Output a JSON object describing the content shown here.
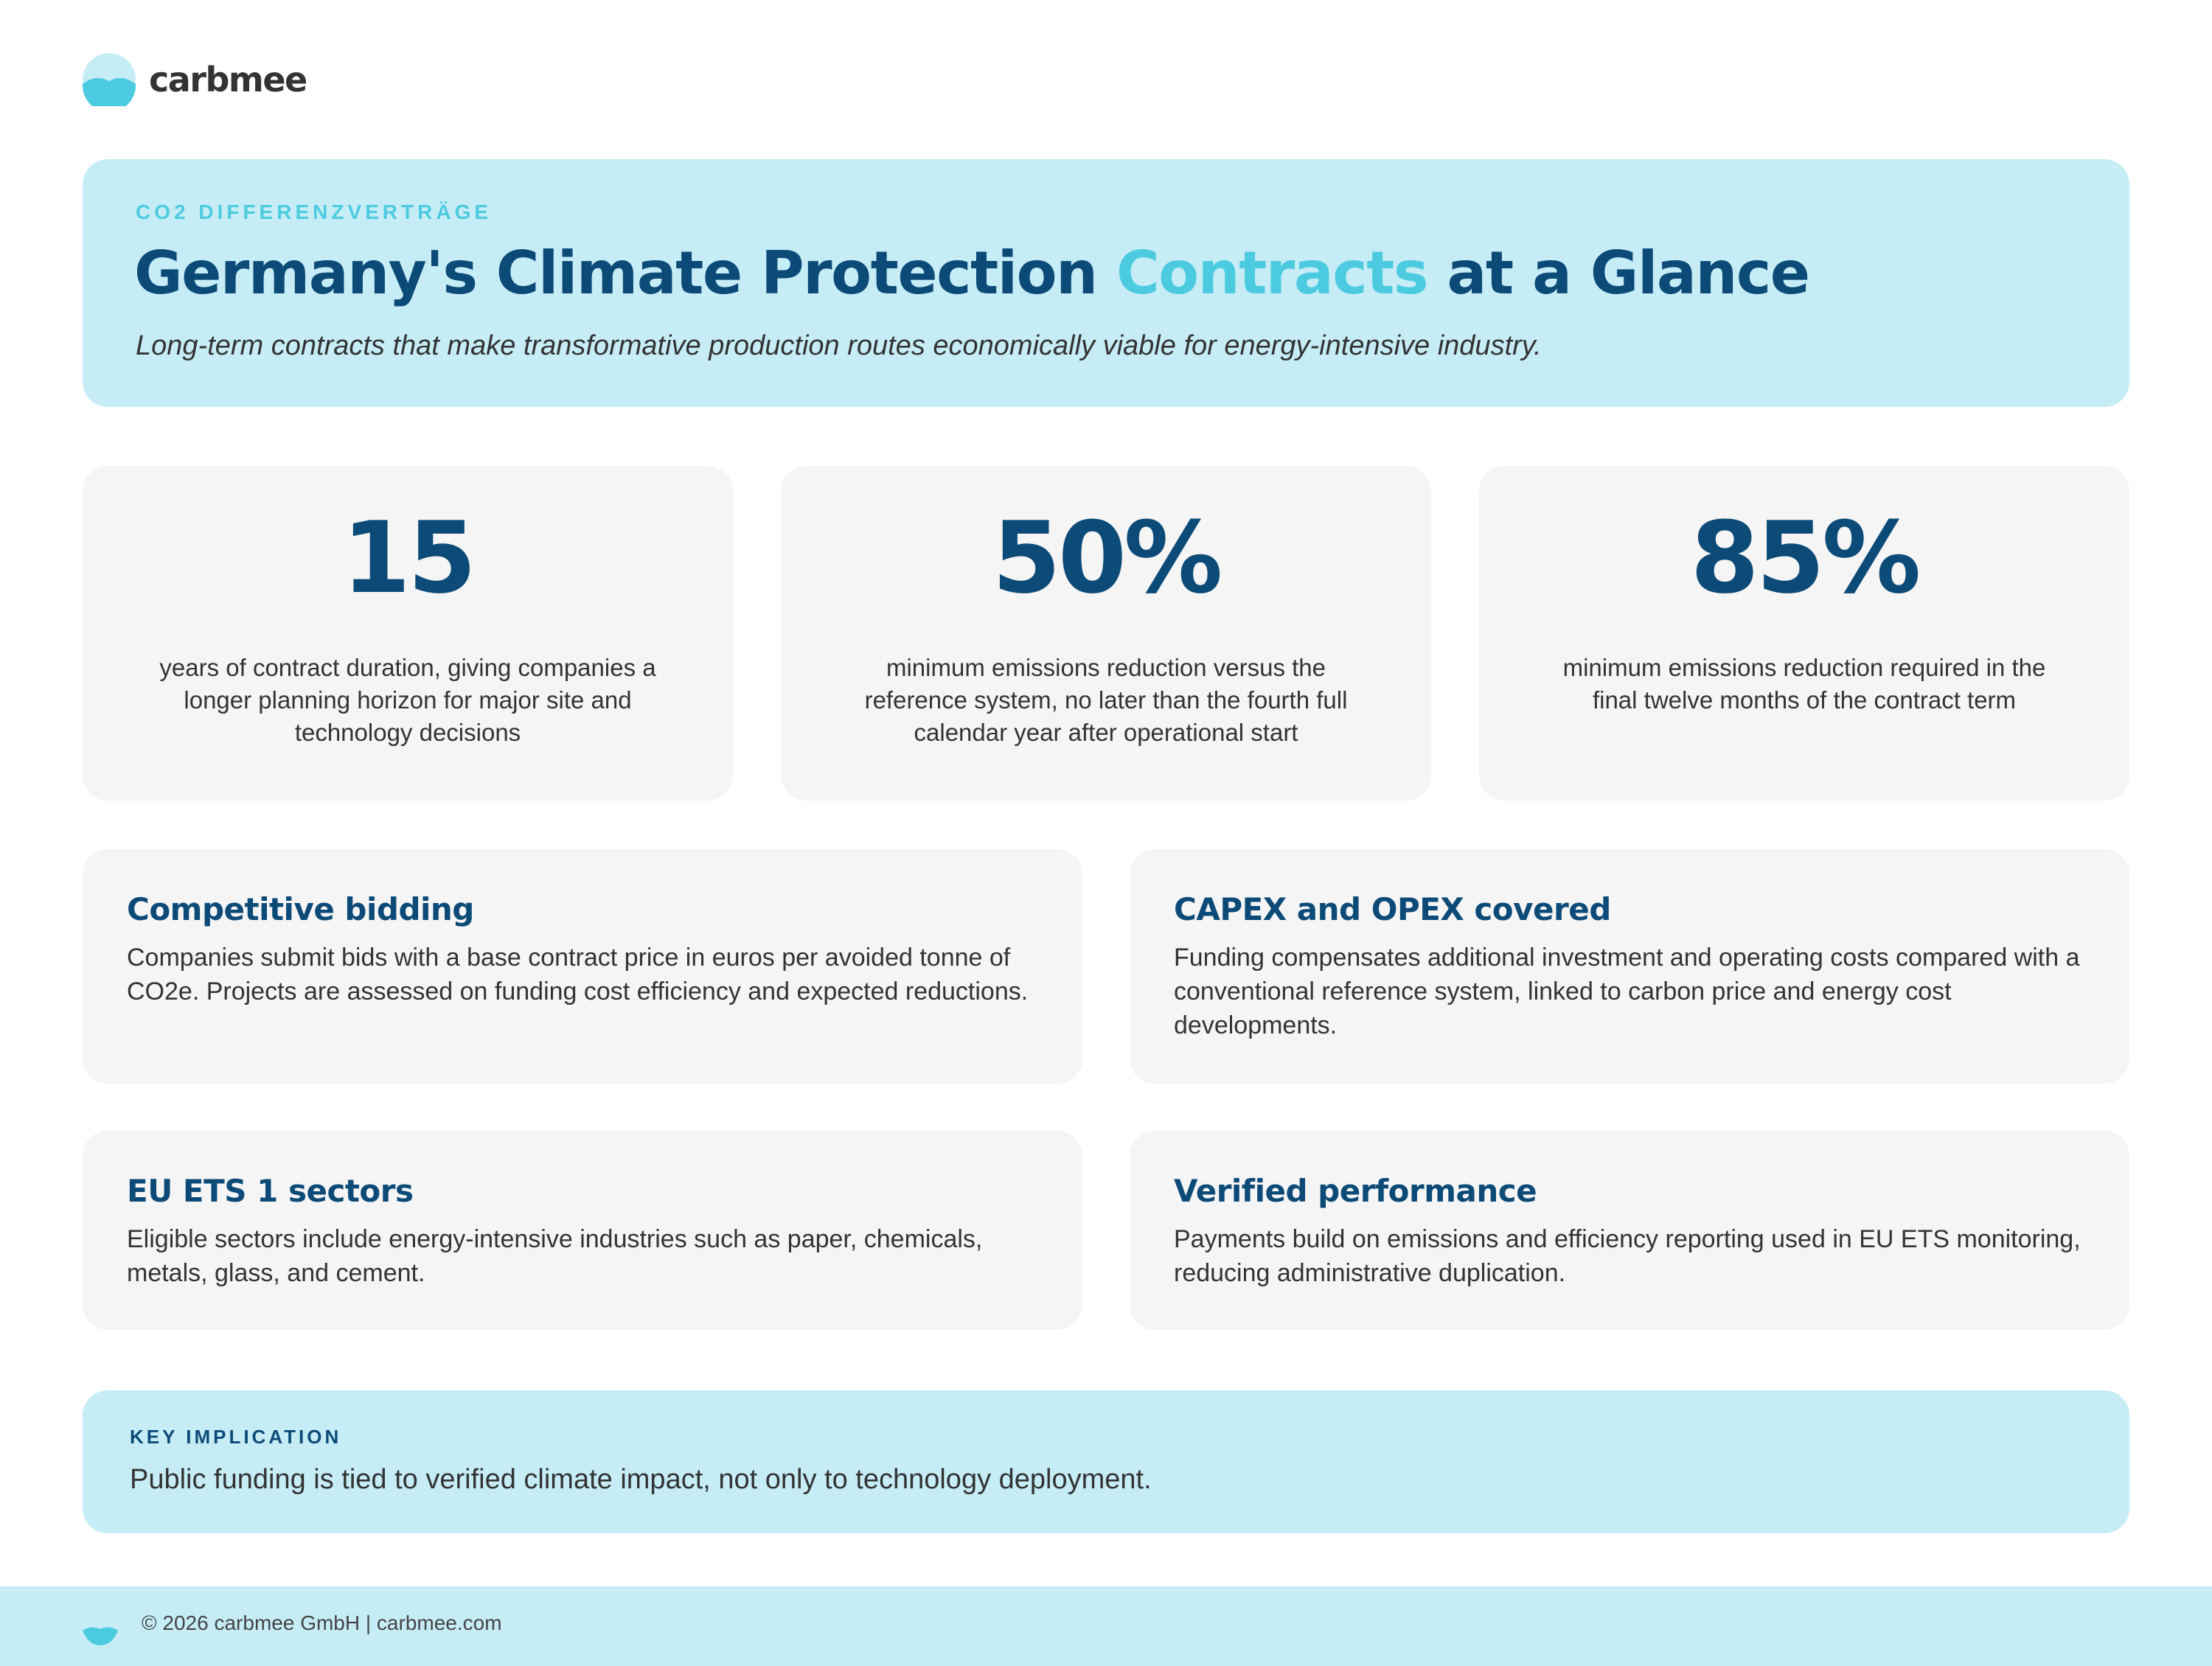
{
  "brand": {
    "name": "carbmee",
    "colors": {
      "navy": "#0c4a78",
      "cyan": "#4ccbe0",
      "light": "#c6edf6"
    }
  },
  "hero": {
    "eyebrow": "CO2 DIFFERENZVERTRÄGE",
    "title_pre": "Germany's Climate Protection ",
    "title_accent": "Contracts",
    "title_post": " at a Glance",
    "subtitle": "Long-term contracts that make transformative production routes economically viable for energy-intensive industry."
  },
  "stats": [
    {
      "value": "15",
      "description": "years of contract duration, giving companies a longer planning horizon for major site and technology decisions"
    },
    {
      "value": "50%",
      "description": "minimum emissions reduction versus the reference system, no later than the fourth full calendar year after operational start"
    },
    {
      "value": "85%",
      "description": "minimum emissions reduction required in the final twelve months of the contract term"
    }
  ],
  "features": [
    {
      "title": "Competitive bidding",
      "text": "Companies submit bids with a base contract price in euros per avoided tonne of CO2e. Projects are assessed on funding cost efficiency and expected reductions."
    },
    {
      "title": "CAPEX and OPEX covered",
      "text": "Funding compensates additional investment and operating costs compared with a conventional reference system, linked to carbon price and energy cost developments."
    },
    {
      "title": "EU ETS 1 sectors",
      "text": "Eligible sectors include energy-intensive industries such as paper, chemicals, metals, glass, and cement."
    },
    {
      "title": "Verified performance",
      "text": "Payments build on emissions and efficiency reporting used in EU ETS monitoring, reducing administrative duplication."
    }
  ],
  "key_implication": {
    "label": "KEY IMPLICATION",
    "text": "Public funding is tied to verified climate impact, not only to technology deployment."
  },
  "footer": {
    "text": "© 2026 carbmee GmbH | carbmee.com"
  }
}
